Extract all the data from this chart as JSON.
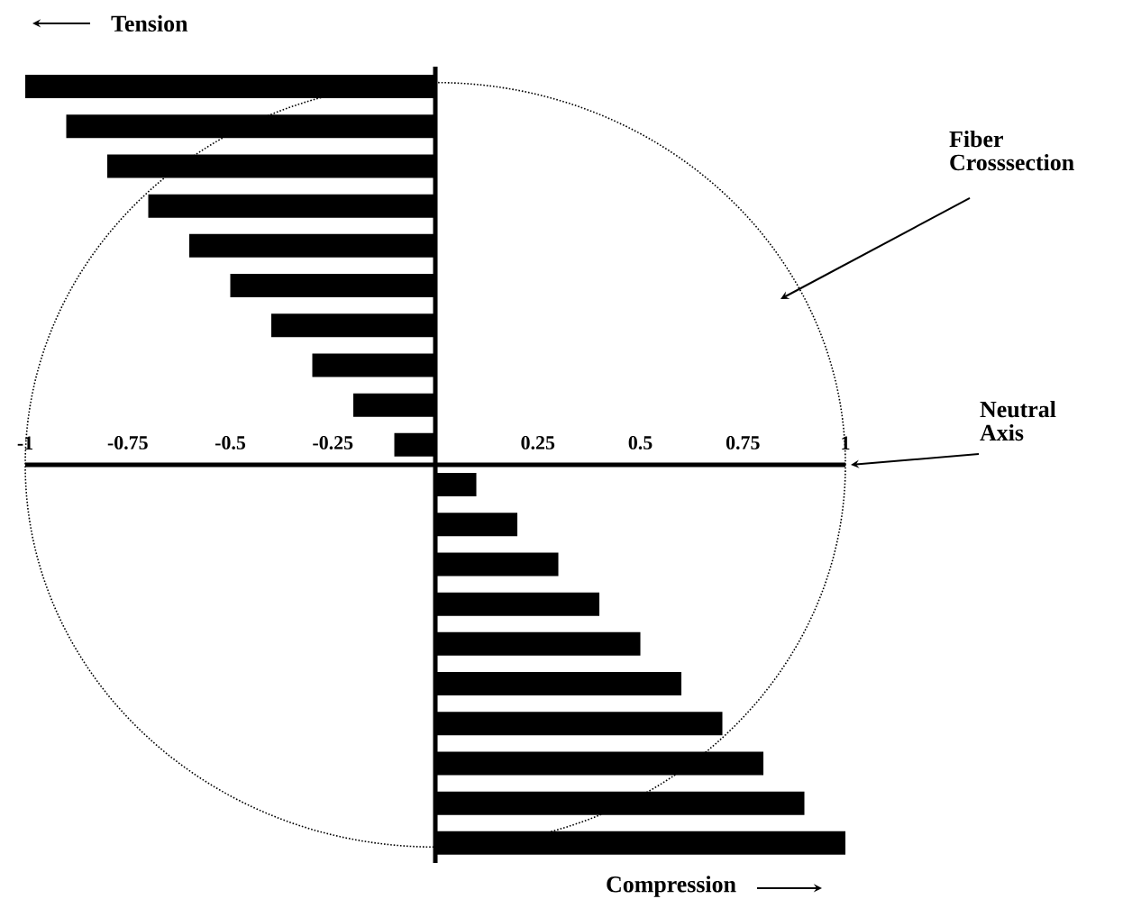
{
  "chart_data": {
    "type": "bar",
    "orientation": "horizontal",
    "categories": [
      null,
      null,
      null,
      null,
      null,
      null,
      null,
      null,
      null,
      null,
      null,
      null,
      null,
      null,
      null,
      null,
      null,
      null,
      null,
      null
    ],
    "values": [
      -1,
      -0.9,
      -0.8,
      -0.7,
      -0.6,
      -0.5,
      -0.4,
      -0.3,
      -0.2,
      -0.1,
      0.1,
      0.2,
      0.3,
      0.4,
      0.5,
      0.6,
      0.7,
      0.8,
      0.9,
      1
    ],
    "color": "#000000",
    "xlim": [
      -1,
      1
    ],
    "xticks": [
      -1,
      -0.75,
      -0.5,
      -0.25,
      0.25,
      0.5,
      0.75,
      1
    ],
    "annotations": [
      "Tension",
      "Fiber Crosssection",
      "Neutral Axis",
      "Compression"
    ]
  }
}
